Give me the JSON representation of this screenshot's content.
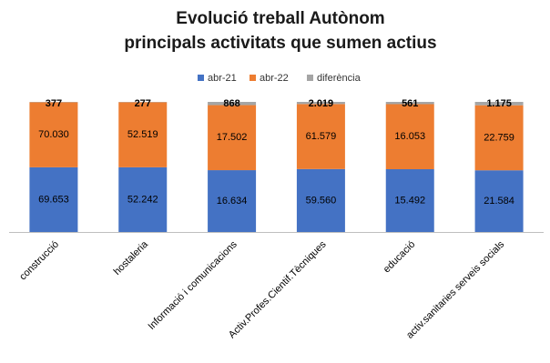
{
  "chart_data": {
    "type": "bar",
    "stacking": "percent",
    "title": [
      "Evolució treball Autònom",
      "principals activitats que sumen actius"
    ],
    "categories": [
      "construcció",
      "hostaleria",
      "Informació i comunicacions",
      "Activ.Profes.Cientif.Tècniques",
      "educació",
      "activ.sanitaries serveis socials"
    ],
    "series": [
      {
        "name": "abr-21",
        "color": "#4472c4",
        "values": [
          69653,
          52242,
          16634,
          59560,
          15492,
          21584
        ],
        "value_labels": [
          "69.653",
          "52.242",
          "16.634",
          "59.560",
          "15.492",
          "21.584"
        ]
      },
      {
        "name": "abr-22",
        "color": "#ed7d31",
        "values": [
          70030,
          52519,
          17502,
          61579,
          16053,
          22759
        ],
        "value_labels": [
          "70.030",
          "52.519",
          "17.502",
          "61.579",
          "16.053",
          "22.759"
        ]
      },
      {
        "name": "diferència",
        "color": "#a5a5a5",
        "values": [
          377,
          277,
          868,
          2019,
          561,
          1175
        ],
        "value_labels": [
          "377",
          "277",
          "868",
          "2.019",
          "561",
          "1.175"
        ]
      }
    ],
    "legend": "top"
  }
}
